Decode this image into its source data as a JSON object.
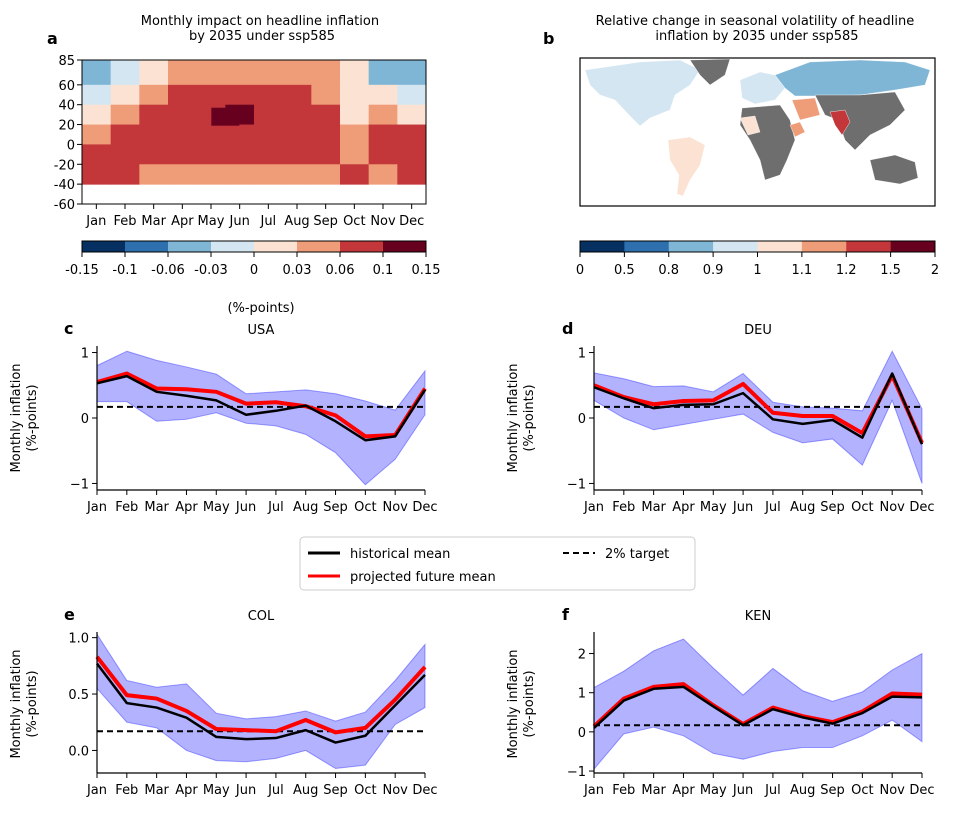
{
  "months": [
    "Jan",
    "Feb",
    "Mar",
    "Apr",
    "May",
    "Jun",
    "Jul",
    "Aug",
    "Sep",
    "Oct",
    "Nov",
    "Dec"
  ],
  "legend": {
    "historical": "historical mean",
    "projected": "projected future mean",
    "target": "2% target"
  },
  "colors": {
    "historical": "#000000",
    "projected": "#ff0000",
    "band": "#0000ff",
    "band_opacity": 0.3,
    "map_missing": "#6e6e6e",
    "ocean": "#ffffff"
  },
  "chart_data": [
    {
      "panel": "a",
      "type": "heatmap",
      "title": "Monthly impact on headline inflation\nby 2035 under ssp585",
      "x": [
        "Jan",
        "Feb",
        "Mar",
        "Apr",
        "May",
        "Jun",
        "Jul",
        "Aug",
        "Sep",
        "Oct",
        "Nov",
        "Dec"
      ],
      "ylim": [
        -60,
        85
      ],
      "yticks": [
        85,
        60,
        40,
        20,
        0,
        -20,
        -40,
        -60
      ],
      "lat_bins": [
        "60-85",
        "40-60",
        "20-40",
        "0-20",
        "-20-0",
        "-40--20",
        "-60--40"
      ],
      "values": [
        [
          -0.05,
          -0.02,
          0.02,
          0.04,
          0.04,
          0.04,
          0.04,
          0.04,
          0.04,
          0.02,
          -0.05,
          -0.05
        ],
        [
          -0.02,
          0.02,
          0.04,
          0.08,
          0.08,
          0.08,
          0.08,
          0.08,
          0.04,
          0.02,
          0.02,
          -0.02
        ],
        [
          0.02,
          0.04,
          0.08,
          0.08,
          0.08,
          0.12,
          0.08,
          0.08,
          0.08,
          0.02,
          0.04,
          0.02
        ],
        [
          0.04,
          0.08,
          0.08,
          0.08,
          0.08,
          0.08,
          0.08,
          0.08,
          0.08,
          0.04,
          0.08,
          0.08
        ],
        [
          0.08,
          0.08,
          0.08,
          0.08,
          0.08,
          0.08,
          0.08,
          0.08,
          0.08,
          0.04,
          0.08,
          0.08
        ],
        [
          0.08,
          0.08,
          0.04,
          0.04,
          0.04,
          0.04,
          0.04,
          0.04,
          0.04,
          0.08,
          0.04,
          0.08
        ],
        [
          null,
          null,
          null,
          null,
          null,
          null,
          null,
          null,
          null,
          null,
          null,
          null
        ]
      ],
      "colorbar": {
        "ticks": [
          "-0.15",
          "-0.1",
          "-0.06",
          "-0.03",
          "0",
          "0.03",
          "0.06",
          "0.1",
          "0.15"
        ],
        "bounds": [
          -0.15,
          -0.1,
          -0.06,
          -0.03,
          0,
          0.03,
          0.06,
          0.1,
          0.15
        ],
        "colors": [
          "#053061",
          "#2e6fae",
          "#7fb6d6",
          "#d4e6f1",
          "#fbe2d2",
          "#ef9d79",
          "#c3373a",
          "#67001f"
        ],
        "label": "(%-points)"
      }
    },
    {
      "panel": "b",
      "type": "map",
      "title": "Relative change in seasonal volatility of headline\ninflation by 2035 under ssp585",
      "colorbar": {
        "ticks": [
          "0",
          "0.5",
          "0.8",
          "0.9",
          "1",
          "1.1",
          "1.2",
          "1.5",
          "2"
        ],
        "bounds": [
          0,
          0.5,
          0.8,
          0.9,
          1,
          1.1,
          1.2,
          1.5,
          2
        ],
        "colors": [
          "#053061",
          "#2e6fae",
          "#7fb6d6",
          "#d4e6f1",
          "#fbe2d2",
          "#ef9d79",
          "#c3373a",
          "#67001f"
        ]
      }
    },
    {
      "panel": "c",
      "type": "line",
      "title": "USA",
      "ylabel": "Monthly inflation\n(%-points)",
      "ylim": [
        -1.1,
        1.1
      ],
      "yticks": [
        1,
        0,
        -1
      ],
      "target": 0.17,
      "series": [
        {
          "name": "historical mean",
          "values": [
            0.53,
            0.64,
            0.4,
            0.34,
            0.27,
            0.05,
            0.11,
            0.19,
            -0.05,
            -0.34,
            -0.28,
            0.43
          ]
        },
        {
          "name": "projected future mean",
          "values": [
            0.55,
            0.68,
            0.45,
            0.44,
            0.4,
            0.22,
            0.24,
            0.18,
            0.04,
            -0.28,
            -0.26,
            0.45
          ]
        }
      ],
      "band_upper": [
        0.8,
        1.02,
        0.88,
        0.78,
        0.67,
        0.37,
        0.4,
        0.43,
        0.37,
        0.26,
        0.12,
        0.72
      ],
      "band_lower": [
        0.25,
        0.25,
        -0.05,
        -0.02,
        0.08,
        -0.08,
        -0.12,
        -0.25,
        -0.53,
        -1.02,
        -0.63,
        0.05
      ]
    },
    {
      "panel": "d",
      "type": "line",
      "title": "DEU",
      "ylabel": "Monthly inflation\n(%-points)",
      "ylim": [
        -1.1,
        1.1
      ],
      "yticks": [
        1,
        0,
        -1
      ],
      "target": 0.17,
      "series": [
        {
          "name": "historical mean",
          "values": [
            0.47,
            0.3,
            0.15,
            0.2,
            0.21,
            0.38,
            -0.02,
            -0.09,
            -0.03,
            -0.3,
            0.68,
            -0.4
          ]
        },
        {
          "name": "projected future mean",
          "values": [
            0.5,
            0.32,
            0.21,
            0.26,
            0.27,
            0.52,
            0.08,
            0.03,
            0.03,
            -0.23,
            0.65,
            -0.38
          ]
        }
      ],
      "band_upper": [
        0.69,
        0.6,
        0.48,
        0.49,
        0.4,
        0.68,
        0.24,
        0.17,
        0.15,
        0.11,
        1.02,
        0.14
      ],
      "band_lower": [
        0.27,
        0.0,
        -0.18,
        -0.1,
        -0.02,
        0.06,
        -0.22,
        -0.38,
        -0.32,
        -0.72,
        0.27,
        -1.0
      ]
    },
    {
      "panel": "e",
      "type": "line",
      "title": "COL",
      "ylabel": "Monthly inflation\n(%-points)",
      "ylim": [
        -0.2,
        1.05
      ],
      "yticks": [
        1.0,
        0.5,
        0.0
      ],
      "target": 0.17,
      "series": [
        {
          "name": "historical mean",
          "values": [
            0.77,
            0.42,
            0.38,
            0.29,
            0.12,
            0.1,
            0.11,
            0.18,
            0.07,
            0.13,
            0.4,
            0.67
          ]
        },
        {
          "name": "projected future mean",
          "values": [
            0.83,
            0.49,
            0.46,
            0.35,
            0.19,
            0.18,
            0.17,
            0.27,
            0.16,
            0.2,
            0.45,
            0.74
          ]
        }
      ],
      "band_upper": [
        1.03,
        0.62,
        0.56,
        0.59,
        0.33,
        0.28,
        0.3,
        0.35,
        0.26,
        0.34,
        0.62,
        0.94
      ],
      "band_lower": [
        0.55,
        0.25,
        0.2,
        0.0,
        -0.09,
        -0.1,
        -0.07,
        0.0,
        -0.16,
        -0.13,
        0.23,
        0.38
      ]
    },
    {
      "panel": "f",
      "type": "line",
      "title": "KEN",
      "ylabel": "Monthly inflation\n(%-points)",
      "ylim": [
        -1.05,
        2.55
      ],
      "yticks": [
        2,
        1,
        0,
        -1
      ],
      "target": 0.17,
      "series": [
        {
          "name": "historical mean",
          "values": [
            0.1,
            0.8,
            1.1,
            1.15,
            0.65,
            0.17,
            0.58,
            0.37,
            0.21,
            0.48,
            0.9,
            0.88
          ]
        },
        {
          "name": "projected future mean",
          "values": [
            0.14,
            0.85,
            1.15,
            1.22,
            0.68,
            0.2,
            0.62,
            0.4,
            0.25,
            0.52,
            0.98,
            0.95
          ]
        }
      ],
      "band_upper": [
        1.13,
        1.55,
        2.07,
        2.37,
        1.63,
        0.94,
        1.62,
        1.05,
        0.78,
        1.02,
        1.58,
        2.0
      ],
      "band_lower": [
        -0.95,
        -0.05,
        0.12,
        -0.1,
        -0.55,
        -0.7,
        -0.5,
        -0.4,
        -0.4,
        -0.1,
        0.3,
        -0.25
      ]
    }
  ],
  "map_regions": [
    {
      "name": "north-america",
      "fill": "#d4e6f1"
    },
    {
      "name": "greenland",
      "fill": "#6e6e6e"
    },
    {
      "name": "south-america",
      "fill": "#fbe2d2"
    },
    {
      "name": "europe",
      "fill": "#d4e6f1"
    },
    {
      "name": "russia",
      "fill": "#7fb6d6"
    },
    {
      "name": "africa",
      "fill": "#6e6e6e"
    },
    {
      "name": "west-africa",
      "fill": "#fbe2d2"
    },
    {
      "name": "horn-of-africa",
      "fill": "#ef9d79"
    },
    {
      "name": "middle-east",
      "fill": "#ef9d79"
    },
    {
      "name": "asia",
      "fill": "#6e6e6e"
    },
    {
      "name": "india",
      "fill": "#c3373a"
    },
    {
      "name": "australia",
      "fill": "#6e6e6e"
    }
  ]
}
